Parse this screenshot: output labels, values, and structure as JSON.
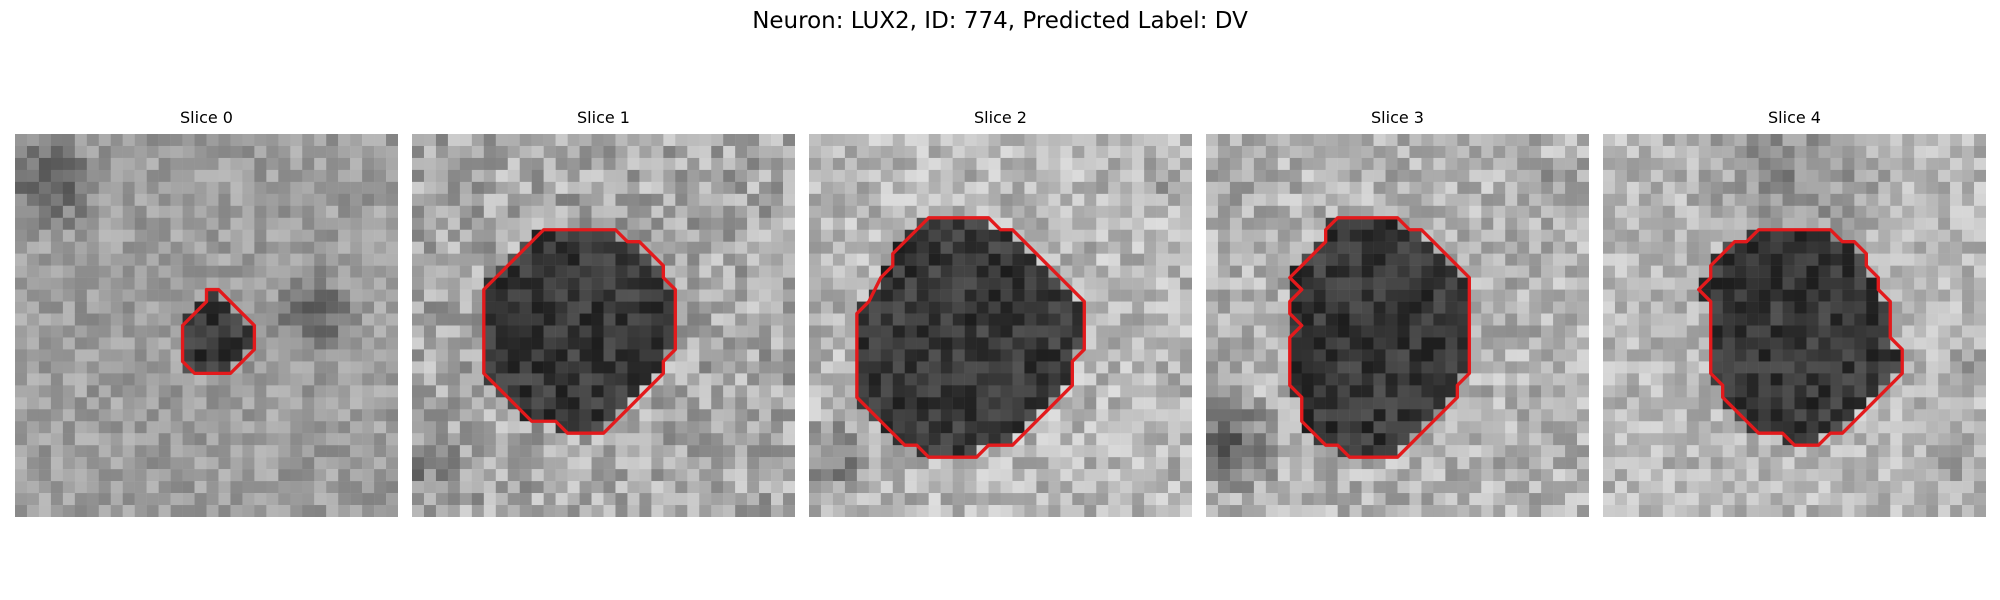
{
  "figure": {
    "title": "Neuron: LUX2, ID: 774, Predicted Label: DV",
    "contour_color": "#e31a1c"
  },
  "panels": [
    {
      "title": "Slice 0",
      "contour": [
        [
          16,
          13
        ],
        [
          17,
          13
        ],
        [
          18,
          14
        ],
        [
          19,
          15
        ],
        [
          20,
          16
        ],
        [
          20,
          18
        ],
        [
          19,
          19
        ],
        [
          18,
          20
        ],
        [
          15,
          20
        ],
        [
          14,
          19
        ],
        [
          14,
          16
        ],
        [
          15,
          15
        ],
        [
          16,
          14
        ]
      ]
    },
    {
      "title": "Slice 1",
      "contour": [
        [
          11,
          8
        ],
        [
          17,
          8
        ],
        [
          18,
          9
        ],
        [
          19,
          9
        ],
        [
          20,
          10
        ],
        [
          21,
          11
        ],
        [
          21,
          12
        ],
        [
          22,
          13
        ],
        [
          22,
          18
        ],
        [
          21,
          19
        ],
        [
          21,
          20
        ],
        [
          20,
          21
        ],
        [
          19,
          22
        ],
        [
          18,
          23
        ],
        [
          17,
          24
        ],
        [
          16,
          25
        ],
        [
          13,
          25
        ],
        [
          12,
          24
        ],
        [
          10,
          24
        ],
        [
          8,
          22
        ],
        [
          7,
          21
        ],
        [
          6,
          20
        ],
        [
          6,
          13
        ],
        [
          7,
          12
        ],
        [
          8,
          11
        ],
        [
          9,
          10
        ],
        [
          10,
          9
        ]
      ]
    },
    {
      "title": "Slice 2",
      "contour": [
        [
          10,
          7
        ],
        [
          15,
          7
        ],
        [
          16,
          8
        ],
        [
          17,
          8
        ],
        [
          18,
          9
        ],
        [
          19,
          10
        ],
        [
          20,
          11
        ],
        [
          21,
          12
        ],
        [
          22,
          13
        ],
        [
          23,
          14
        ],
        [
          23,
          18
        ],
        [
          22,
          19
        ],
        [
          22,
          21
        ],
        [
          21,
          22
        ],
        [
          20,
          23
        ],
        [
          19,
          24
        ],
        [
          18,
          25
        ],
        [
          17,
          26
        ],
        [
          15,
          26
        ],
        [
          14,
          27
        ],
        [
          10,
          27
        ],
        [
          9,
          26
        ],
        [
          8,
          26
        ],
        [
          7,
          25
        ],
        [
          6,
          24
        ],
        [
          5,
          23
        ],
        [
          4,
          22
        ],
        [
          4,
          15
        ],
        [
          5,
          14
        ],
        [
          6,
          12
        ],
        [
          7,
          11
        ],
        [
          7,
          10
        ],
        [
          8,
          9
        ],
        [
          9,
          8
        ]
      ]
    },
    {
      "title": "Slice 3",
      "contour": [
        [
          11,
          7
        ],
        [
          16,
          7
        ],
        [
          17,
          8
        ],
        [
          18,
          8
        ],
        [
          19,
          9
        ],
        [
          20,
          10
        ],
        [
          21,
          11
        ],
        [
          22,
          12
        ],
        [
          22,
          20
        ],
        [
          21,
          21
        ],
        [
          21,
          22
        ],
        [
          20,
          23
        ],
        [
          19,
          24
        ],
        [
          18,
          25
        ],
        [
          17,
          26
        ],
        [
          16,
          27
        ],
        [
          12,
          27
        ],
        [
          11,
          26
        ],
        [
          10,
          26
        ],
        [
          9,
          25
        ],
        [
          8,
          24
        ],
        [
          8,
          22
        ],
        [
          7,
          21
        ],
        [
          7,
          17
        ],
        [
          8,
          16
        ],
        [
          7,
          15
        ],
        [
          7,
          14
        ],
        [
          8,
          13
        ],
        [
          7,
          12
        ],
        [
          8,
          11
        ],
        [
          9,
          10
        ],
        [
          10,
          9
        ],
        [
          10,
          8
        ]
      ]
    },
    {
      "title": "Slice 4",
      "contour": [
        [
          13,
          8
        ],
        [
          19,
          8
        ],
        [
          20,
          9
        ],
        [
          21,
          9
        ],
        [
          22,
          10
        ],
        [
          22,
          11
        ],
        [
          23,
          12
        ],
        [
          23,
          13
        ],
        [
          24,
          14
        ],
        [
          24,
          17
        ],
        [
          25,
          18
        ],
        [
          25,
          20
        ],
        [
          24,
          21
        ],
        [
          23,
          22
        ],
        [
          22,
          23
        ],
        [
          21,
          24
        ],
        [
          20,
          25
        ],
        [
          19,
          25
        ],
        [
          18,
          26
        ],
        [
          16,
          26
        ],
        [
          15,
          25
        ],
        [
          13,
          25
        ],
        [
          12,
          24
        ],
        [
          11,
          23
        ],
        [
          10,
          22
        ],
        [
          10,
          21
        ],
        [
          9,
          20
        ],
        [
          9,
          14
        ],
        [
          8,
          13
        ],
        [
          9,
          12
        ],
        [
          9,
          11
        ],
        [
          10,
          10
        ],
        [
          11,
          9
        ],
        [
          12,
          9
        ]
      ]
    }
  ]
}
